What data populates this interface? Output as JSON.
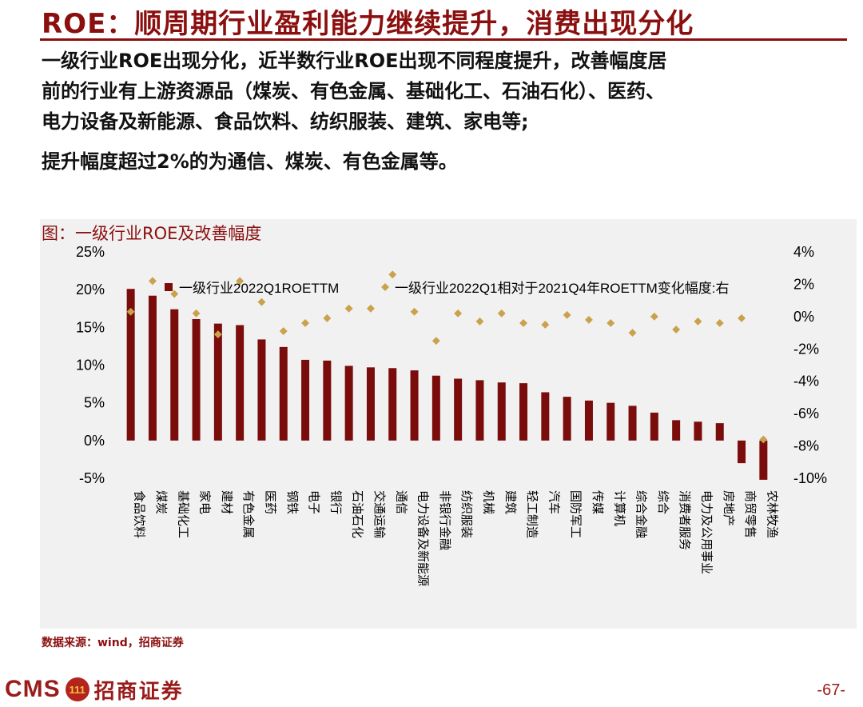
{
  "slide": {
    "title": "ROE：顺周期行业盈利能力继续提升，消费出现分化",
    "paragraph_lines": [
      "一级行业ROE出现分化，近半数行业ROE出现不同程度提升，改善幅度居",
      "前的行业有上游资源品（煤炭、有色金属、基础化工、石油石化）、医药、",
      "电力设备及新能源、食品饮料、纺织服装、建筑、家电等;",
      "提升幅度超过2%的为通信、煤炭、有色金属等。"
    ],
    "chart_title": "图：一级行业ROE及改善幅度",
    "source": "数据来源：wind，招商证券",
    "logo_text": "CMS",
    "logo_badge": "111",
    "logo_cn": "招商证券",
    "page_number": "-67-"
  },
  "colors": {
    "brand": "#8b0f0f",
    "bar": "#7a0c0c",
    "marker": "#c9a24b",
    "panel": "#f1f1f1"
  },
  "chart_data": {
    "type": "bar+scatter",
    "categories": [
      "食品饮料",
      "煤炭",
      "基础化工",
      "家电",
      "建材",
      "有色金属",
      "医药",
      "钢铁",
      "电子",
      "银行",
      "石油石化",
      "交通运输",
      "通信",
      "电力设备及新能源",
      "非银行金融",
      "纺织服装",
      "机械",
      "建筑",
      "轻工制造",
      "汽车",
      "国防军工",
      "传媒",
      "计算机",
      "综合金融",
      "综合",
      "消费者服务",
      "电力及公用事业",
      "房地产",
      "商贸零售",
      "农林牧渔"
    ],
    "series": [
      {
        "name": "一级行业2022Q1ROETTM",
        "type": "bar",
        "axis": "left",
        "values": [
          20.1,
          19.2,
          17.4,
          16.1,
          15.5,
          15.3,
          13.4,
          12.4,
          10.7,
          10.6,
          9.9,
          9.7,
          9.6,
          9.3,
          8.6,
          8.2,
          8.0,
          7.7,
          7.6,
          6.4,
          5.8,
          5.3,
          5.0,
          4.6,
          3.7,
          2.7,
          2.5,
          2.3,
          -3.0,
          -5.2
        ]
      },
      {
        "name": "一级行业2022Q1相对于2021Q4年ROETTM变化幅度:右",
        "type": "scatter",
        "axis": "right",
        "values": [
          0.3,
          2.2,
          1.4,
          0.2,
          -1.1,
          2.2,
          0.9,
          -0.9,
          -0.4,
          -0.1,
          0.5,
          0.5,
          2.6,
          0.3,
          -1.5,
          0.2,
          -0.3,
          0.2,
          -0.4,
          -0.5,
          0.1,
          -0.2,
          -0.4,
          -1.0,
          0.0,
          -0.8,
          -0.3,
          -0.4,
          -0.1,
          -7.6
        ]
      }
    ],
    "left_axis": {
      "ticks": [
        "25%",
        "20%",
        "15%",
        "10%",
        "5%",
        "0%",
        "-5%"
      ],
      "min": -5,
      "max": 25
    },
    "right_axis": {
      "ticks": [
        "4%",
        "2%",
        "0%",
        "-2%",
        "-4%",
        "-6%",
        "-8%",
        "-10%"
      ],
      "min": -10,
      "max": 4
    },
    "legend_position": "top"
  }
}
